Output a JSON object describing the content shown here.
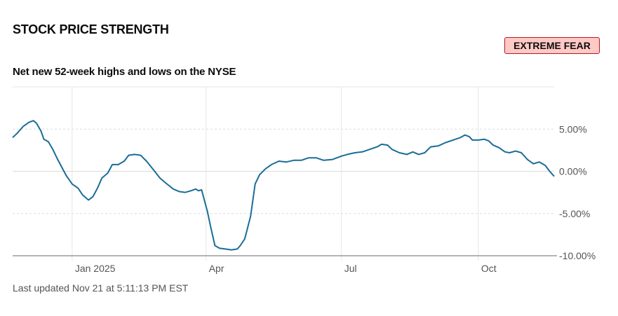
{
  "header": {
    "title": "STOCK PRICE STRENGTH",
    "badge": "EXTREME FEAR",
    "badge_colors": {
      "background": "#ffc9c6",
      "border": "#b3191f"
    }
  },
  "subtitle": "Net new 52-week highs and lows on the NYSE",
  "footer": {
    "last_updated": "Last updated Nov 21 at 5:11:13 PM EST"
  },
  "chart_data": {
    "type": "line",
    "ylim": [
      -10,
      10
    ],
    "y_ticks": [
      {
        "value": 5,
        "label": "5.00%"
      },
      {
        "value": 0,
        "label": "0.00%"
      },
      {
        "value": -5,
        "label": "-5.00%"
      },
      {
        "value": -10,
        "label": "-10.00%"
      }
    ],
    "x_ticks": [
      {
        "label": "Jan 2025",
        "date": "2025-01-01"
      },
      {
        "label": "Apr",
        "date": "2025-04-01"
      },
      {
        "label": "Jul",
        "date": "2025-07-01"
      },
      {
        "label": "Oct",
        "date": "2025-10-01"
      }
    ],
    "x_range": [
      "2024-11-22",
      "2025-11-21"
    ],
    "line_color": "#1a6d96",
    "grid": true,
    "series": [
      {
        "points": [
          [
            "2024-11-22",
            4.0
          ],
          [
            "2024-11-25",
            4.5
          ],
          [
            "2024-11-29",
            5.3
          ],
          [
            "2024-12-03",
            5.8
          ],
          [
            "2024-12-06",
            6.0
          ],
          [
            "2024-12-08",
            5.7
          ],
          [
            "2024-12-11",
            4.8
          ],
          [
            "2024-12-13",
            3.8
          ],
          [
            "2024-12-16",
            3.5
          ],
          [
            "2024-12-19",
            2.6
          ],
          [
            "2024-12-22",
            1.5
          ],
          [
            "2024-12-25",
            0.5
          ],
          [
            "2024-12-28",
            -0.5
          ],
          [
            "2025-01-01",
            -1.5
          ],
          [
            "2025-01-05",
            -2.0
          ],
          [
            "2025-01-08",
            -2.8
          ],
          [
            "2025-01-12",
            -3.4
          ],
          [
            "2025-01-15",
            -3.0
          ],
          [
            "2025-01-18",
            -2.0
          ],
          [
            "2025-01-21",
            -0.8
          ],
          [
            "2025-01-25",
            -0.2
          ],
          [
            "2025-01-28",
            0.8
          ],
          [
            "2025-02-01",
            0.8
          ],
          [
            "2025-02-05",
            1.2
          ],
          [
            "2025-02-08",
            1.9
          ],
          [
            "2025-02-12",
            2.0
          ],
          [
            "2025-02-16",
            1.9
          ],
          [
            "2025-02-20",
            1.2
          ],
          [
            "2025-02-25",
            0.1
          ],
          [
            "2025-03-01",
            -0.8
          ],
          [
            "2025-03-05",
            -1.4
          ],
          [
            "2025-03-10",
            -2.1
          ],
          [
            "2025-03-14",
            -2.4
          ],
          [
            "2025-03-18",
            -2.5
          ],
          [
            "2025-03-22",
            -2.3
          ],
          [
            "2025-03-25",
            -2.1
          ],
          [
            "2025-03-27",
            -2.3
          ],
          [
            "2025-03-29",
            -2.2
          ],
          [
            "2025-04-02",
            -4.8
          ],
          [
            "2025-04-04",
            -6.5
          ],
          [
            "2025-04-07",
            -8.8
          ],
          [
            "2025-04-10",
            -9.1
          ],
          [
            "2025-04-14",
            -9.2
          ],
          [
            "2025-04-18",
            -9.3
          ],
          [
            "2025-04-22",
            -9.2
          ],
          [
            "2025-04-24",
            -8.8
          ],
          [
            "2025-04-27",
            -8.0
          ],
          [
            "2025-05-01",
            -5.3
          ],
          [
            "2025-05-04",
            -1.5
          ],
          [
            "2025-05-07",
            -0.4
          ],
          [
            "2025-05-11",
            0.3
          ],
          [
            "2025-05-15",
            0.8
          ],
          [
            "2025-05-20",
            1.2
          ],
          [
            "2025-05-25",
            1.1
          ],
          [
            "2025-05-30",
            1.3
          ],
          [
            "2025-06-04",
            1.3
          ],
          [
            "2025-06-09",
            1.6
          ],
          [
            "2025-06-14",
            1.6
          ],
          [
            "2025-06-19",
            1.3
          ],
          [
            "2025-06-25",
            1.4
          ],
          [
            "2025-07-01",
            1.8
          ],
          [
            "2025-07-05",
            2.0
          ],
          [
            "2025-07-10",
            2.2
          ],
          [
            "2025-07-15",
            2.3
          ],
          [
            "2025-07-20",
            2.6
          ],
          [
            "2025-07-25",
            2.9
          ],
          [
            "2025-07-28",
            3.2
          ],
          [
            "2025-08-01",
            3.1
          ],
          [
            "2025-08-04",
            2.6
          ],
          [
            "2025-08-09",
            2.2
          ],
          [
            "2025-08-14",
            2.0
          ],
          [
            "2025-08-18",
            2.3
          ],
          [
            "2025-08-22",
            2.0
          ],
          [
            "2025-08-26",
            2.2
          ],
          [
            "2025-08-30",
            2.9
          ],
          [
            "2025-09-04",
            3.0
          ],
          [
            "2025-09-09",
            3.4
          ],
          [
            "2025-09-14",
            3.7
          ],
          [
            "2025-09-19",
            4.0
          ],
          [
            "2025-09-22",
            4.3
          ],
          [
            "2025-09-25",
            4.1
          ],
          [
            "2025-09-27",
            3.7
          ],
          [
            "2025-10-01",
            3.7
          ],
          [
            "2025-10-05",
            3.8
          ],
          [
            "2025-10-08",
            3.6
          ],
          [
            "2025-10-11",
            3.1
          ],
          [
            "2025-10-15",
            2.8
          ],
          [
            "2025-10-19",
            2.3
          ],
          [
            "2025-10-22",
            2.2
          ],
          [
            "2025-10-26",
            2.4
          ],
          [
            "2025-10-30",
            2.2
          ],
          [
            "2025-11-03",
            1.4
          ],
          [
            "2025-11-07",
            0.9
          ],
          [
            "2025-11-11",
            1.1
          ],
          [
            "2025-11-15",
            0.7
          ],
          [
            "2025-11-18",
            0.0
          ],
          [
            "2025-11-21",
            -0.6
          ]
        ]
      }
    ]
  }
}
